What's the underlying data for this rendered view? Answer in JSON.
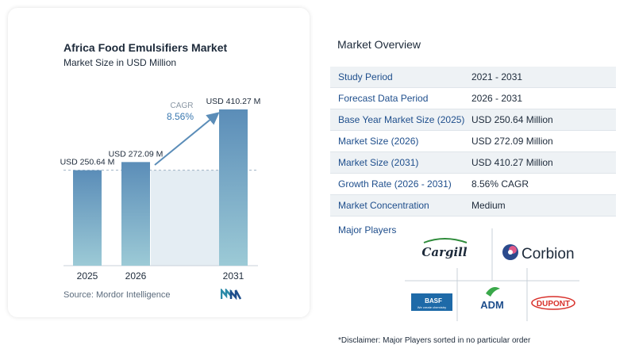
{
  "chart": {
    "title": "Africa Food Emulsifiers Market",
    "subtitle": "Market Size in USD Million",
    "source": "Source:  Mordor Intelligence",
    "cagr_label": "CAGR",
    "cagr_value": "8.56%"
  },
  "chart_data": {
    "type": "bar",
    "title": "Africa Food Emulsifiers Market",
    "subtitle": "Market Size in USD Million",
    "categories": [
      "2025",
      "2026",
      "2031"
    ],
    "values": [
      250.64,
      272.09,
      410.27
    ],
    "data_labels": [
      "USD 250.64 M",
      "USD 272.09 M",
      "USD 410.27 M"
    ],
    "xlabel": "",
    "ylabel": "",
    "grid": false,
    "colors": {
      "bar_top": "#5b8db8",
      "bar_bottom": "#9ccad6",
      "arrow": "#5b8db8",
      "band": "#e4edf3"
    }
  },
  "overview": {
    "title": "Market Overview",
    "rows": [
      {
        "label": "Study Period",
        "value": "2021 - 2031"
      },
      {
        "label": "Forecast Data Period",
        "value": "2026 - 2031"
      },
      {
        "label": "Base Year Market Size (2025)",
        "value": "USD 250.64 Million"
      },
      {
        "label": "Market Size (2026)",
        "value": "USD 272.09 Million"
      },
      {
        "label": "Market Size (2031)",
        "value": "USD 410.27 Million"
      },
      {
        "label": "Growth Rate (2026 - 2031)",
        "value": "8.56% CAGR"
      },
      {
        "label": "Market Concentration",
        "value": "Medium"
      }
    ]
  },
  "players": {
    "title": "Major Players",
    "logos": {
      "cargill": "Cargill",
      "corbion": "Corbion",
      "basf": "BASF",
      "basf_tag": "We create chemistry",
      "adm": "ADM",
      "dupont": "DUPONT"
    }
  },
  "disclaimer": "*Disclaimer: Major Players sorted in no particular order",
  "colors": {
    "label_blue": "#1e4e8c",
    "row_alt": "#eef2f5"
  }
}
